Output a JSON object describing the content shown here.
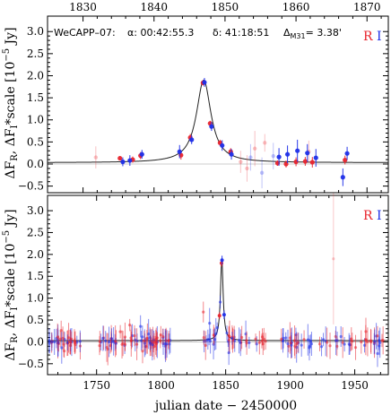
{
  "chart_data": [
    {
      "type": "scatter",
      "header": {
        "object": "WeCAPP–07:",
        "alpha": "α: 00:42:55.3",
        "delta": "δ: 41:18:51",
        "dist_sym": "Δ",
        "dist_sub": "M31",
        "dist_val": "= 3.38'"
      },
      "legend": {
        "r": "R",
        "i": "I",
        "position": "top-right"
      },
      "ylabel": "ΔF_R, ΔF_I*scale [10^-5 Jy]",
      "xlim": [
        1825,
        1873
      ],
      "ylim": [
        -0.65,
        3.35
      ],
      "x_ticks_top": [
        "1830",
        "1840",
        "1850",
        "1860",
        "1870"
      ],
      "y_ticks": [
        "−0.5",
        "0.0",
        "0.5",
        "1.0",
        "1.5",
        "2.0",
        "2.5",
        "3.0"
      ],
      "model": {
        "t0": 1847.0,
        "peak": 1.87,
        "tau": 1.25
      },
      "series": [
        {
          "name": "R",
          "color": "#e8262f",
          "points": [
            [
              1835.2,
              0.13,
              0.05
            ],
            [
              1837.0,
              0.1,
              0.07
            ],
            [
              1838.1,
              0.19,
              0.08
            ],
            [
              1843.8,
              0.2,
              0.1
            ],
            [
              1845.1,
              0.6,
              0.08
            ],
            [
              1846.9,
              1.84,
              0.06
            ],
            [
              1847.9,
              0.92,
              0.06
            ],
            [
              1849.3,
              0.48,
              0.07
            ],
            [
              1850.8,
              0.28,
              0.08
            ],
            [
              1857.4,
              0.02,
              0.06
            ],
            [
              1858.6,
              0.0,
              0.08
            ],
            [
              1860.0,
              0.05,
              0.1
            ],
            [
              1861.3,
              0.06,
              0.1
            ],
            [
              1862.3,
              0.04,
              0.12
            ],
            [
              1866.9,
              0.09,
              0.1
            ]
          ],
          "faint_points": [
            [
              1831.8,
              0.15,
              0.25
            ],
            [
              1852.2,
              0.05,
              0.25
            ],
            [
              1853.1,
              -0.1,
              0.3
            ],
            [
              1854.2,
              0.35,
              0.4
            ],
            [
              1855.6,
              0.48,
              0.2
            ],
            [
              1861.8,
              0.28,
              0.25
            ]
          ]
        },
        {
          "name": "I",
          "color": "#1f2fe8",
          "points": [
            [
              1835.6,
              0.05,
              0.1
            ],
            [
              1836.6,
              0.08,
              0.12
            ],
            [
              1838.3,
              0.22,
              0.1
            ],
            [
              1843.6,
              0.28,
              0.15
            ],
            [
              1845.3,
              0.55,
              0.1
            ],
            [
              1847.1,
              1.85,
              0.1
            ],
            [
              1848.1,
              0.85,
              0.1
            ],
            [
              1849.6,
              0.42,
              0.12
            ],
            [
              1850.9,
              0.22,
              0.12
            ],
            [
              1857.6,
              0.16,
              0.2
            ],
            [
              1858.8,
              0.22,
              0.2
            ],
            [
              1860.2,
              0.3,
              0.25
            ],
            [
              1861.6,
              0.25,
              0.2
            ],
            [
              1862.8,
              0.14,
              0.2
            ],
            [
              1866.6,
              -0.3,
              0.2
            ],
            [
              1867.2,
              0.24,
              0.15
            ]
          ],
          "faint_points": [
            [
              1853.6,
              0.15,
              0.3
            ],
            [
              1855.2,
              -0.2,
              0.35
            ],
            [
              1856.8,
              0.18,
              0.3
            ]
          ]
        }
      ]
    },
    {
      "type": "scatter",
      "legend": {
        "r": "R",
        "i": "I",
        "position": "top-right"
      },
      "xlabel": "julian date − 2450000",
      "ylabel": "ΔF_R, ΔF_I*scale [10^-5 Jy]",
      "xlim": [
        1712,
        1976
      ],
      "ylim": [
        -0.75,
        3.35
      ],
      "x_ticks_bottom": [
        "1750",
        "1800",
        "1850",
        "1900",
        "1950"
      ],
      "y_ticks": [
        "−0.5",
        "0.0",
        "0.5",
        "1.0",
        "1.5",
        "2.0",
        "2.5",
        "3.0"
      ],
      "model": {
        "t0": 1847.0,
        "peak": 1.87,
        "tau": 1.25
      },
      "peak_points": [
        {
          "series": "R",
          "x": 1846.8,
          "y": 1.8,
          "err": 0.08
        },
        {
          "series": "I",
          "x": 1847.2,
          "y": 1.87,
          "err": 0.1
        },
        {
          "series": "R",
          "x": 1845.2,
          "y": 0.6,
          "err": 0.08
        },
        {
          "series": "I",
          "x": 1848.8,
          "y": 0.62,
          "err": 0.1
        }
      ],
      "outlier": {
        "series": "R",
        "x": 1933.5,
        "y": 1.9,
        "err": 1.5
      },
      "scatter_note": "dense R and I measurements scattered around 0.0 across the full baseline",
      "series": [
        {
          "name": "R",
          "color": "#e8262f"
        },
        {
          "name": "I",
          "color": "#1f2fe8"
        }
      ]
    }
  ]
}
